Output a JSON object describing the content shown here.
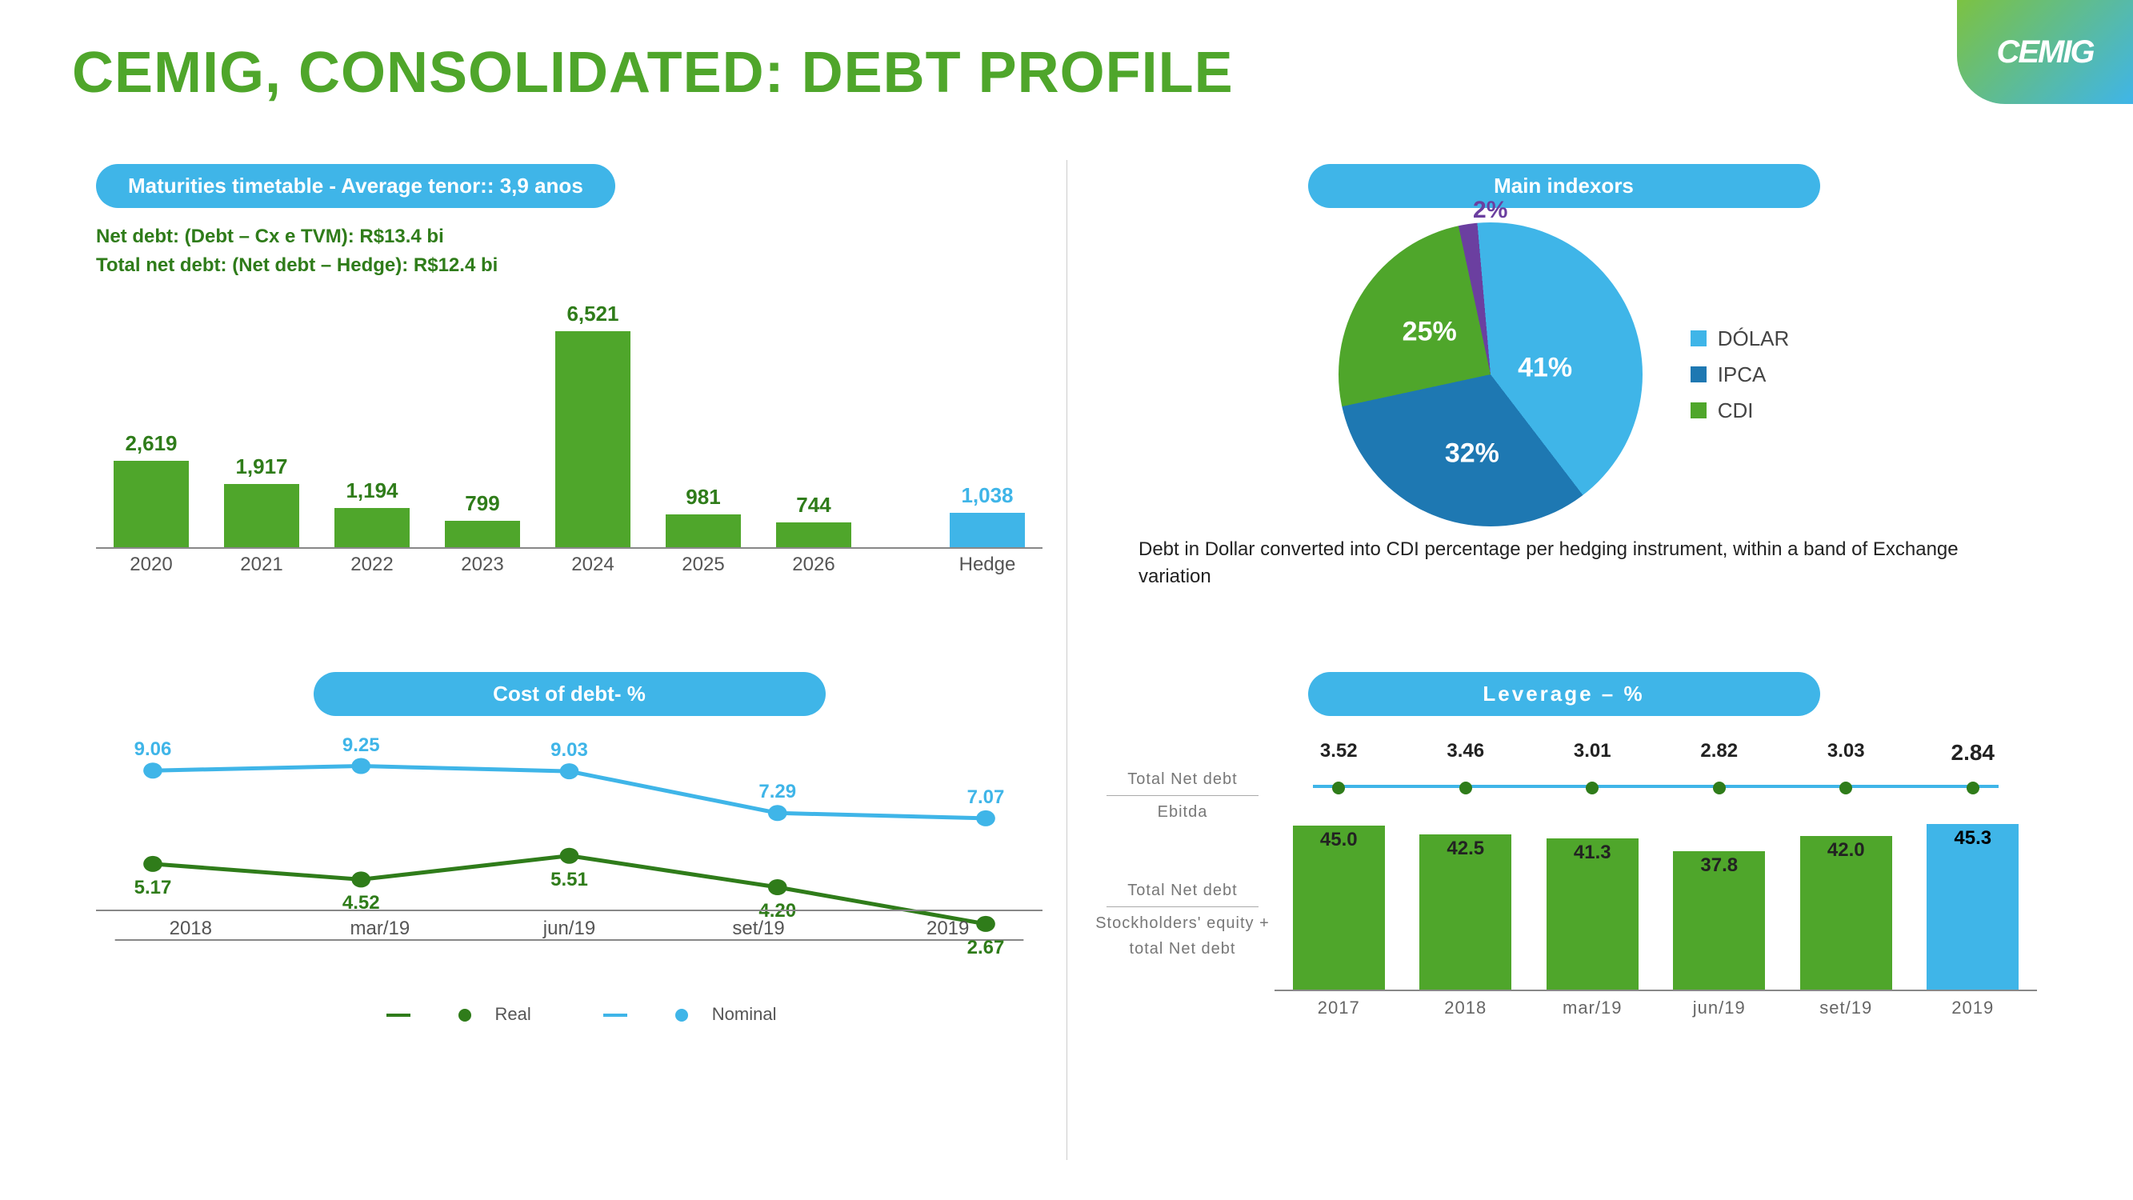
{
  "title": "CEMIG, CONSOLIDATED: DEBT PROFILE",
  "logo": "CEMIG",
  "colors": {
    "green": "#4fa62b",
    "green_dark": "#2f7c1a",
    "blue_light": "#3fb5e8",
    "blue_dark": "#1e78b2",
    "purple": "#6b3fa0",
    "grey": "#888888",
    "background": "#ffffff"
  },
  "quad1": {
    "pill": "Maturities timetable - Average tenor:: 3,9 anos",
    "line1a": "Net debt:",
    "line1b": "(Debt – Cx e TVM):",
    "line1c": "R$13.4 bi",
    "line2a": "Total net debt:",
    "line2b": "(Net debt – Hedge):",
    "line2c": "R$12.4 bi",
    "chart": {
      "type": "bar",
      "ymax": 6521,
      "categories": [
        "2020",
        "2021",
        "2022",
        "2023",
        "2024",
        "2025",
        "2026",
        "",
        "Hedge"
      ],
      "values": [
        2619,
        1917,
        1194,
        799,
        6521,
        981,
        744,
        null,
        1038
      ],
      "colors": [
        "#4fa62b",
        "#4fa62b",
        "#4fa62b",
        "#4fa62b",
        "#4fa62b",
        "#4fa62b",
        "#4fa62b",
        "",
        "#3fb5e8"
      ],
      "label_colors": [
        "#2f7c1a",
        "#2f7c1a",
        "#2f7c1a",
        "#2f7c1a",
        "#2f7c1a",
        "#2f7c1a",
        "#2f7c1a",
        "",
        "#3fb5e8"
      ]
    }
  },
  "quad2": {
    "pill": "Main indexors",
    "pie": {
      "type": "pie",
      "slices": [
        {
          "label": "41%",
          "value": 41,
          "color": "#3fb5e8",
          "lx": 68,
          "ly": 48
        },
        {
          "label": "32%",
          "value": 32,
          "color": "#1e78b2",
          "lx": 44,
          "ly": 76
        },
        {
          "label": "25%",
          "value": 25,
          "color": "#4fa62b",
          "lx": 30,
          "ly": 36
        },
        {
          "label": "2%",
          "value": 2,
          "color": "#6b3fa0",
          "lx": 50,
          "ly": -4,
          "text_color": "#6b3fa0"
        }
      ],
      "legend": [
        {
          "label": "DÓLAR",
          "color": "#3fb5e8"
        },
        {
          "label": "IPCA",
          "color": "#1e78b2"
        },
        {
          "label": "CDI",
          "color": "#4fa62b"
        }
      ]
    },
    "note": "Debt in Dollar converted into CDI percentage per hedging instrument, within a band of Exchange variation"
  },
  "quad3": {
    "pill": "Cost of debt- %",
    "chart": {
      "type": "line",
      "categories": [
        "2018",
        "mar/19",
        "jun/19",
        "set/19",
        "2019"
      ],
      "ymin": 2,
      "ymax": 10,
      "series": [
        {
          "name": "Nominal",
          "color": "#3fb5e8",
          "values": [
            9.06,
            9.25,
            9.03,
            7.29,
            7.07
          ],
          "label_dy": -26
        },
        {
          "name": "Real",
          "color": "#2f7c1a",
          "values": [
            5.17,
            4.52,
            5.51,
            4.2,
            2.67
          ],
          "label_dy": 30
        }
      ],
      "legend": [
        {
          "name": "Real",
          "color": "#2f7c1a"
        },
        {
          "name": "Nominal",
          "color": "#3fb5e8"
        }
      ]
    }
  },
  "quad4": {
    "pill": "Leverage – %",
    "left_labels": {
      "top_num": "Total Net debt",
      "top_den": "Ebitda",
      "bot_num": "Total Net debt",
      "bot_den": "Stockholders' equity + total Net debt"
    },
    "chart": {
      "type": "bar+line",
      "categories": [
        "2017",
        "2018",
        "mar/19",
        "jun/19",
        "set/19",
        "2019"
      ],
      "bar_values": [
        45.0,
        42.5,
        41.3,
        37.8,
        42.0,
        45.3
      ],
      "bar_colors": [
        "#4fa62b",
        "#4fa62b",
        "#4fa62b",
        "#4fa62b",
        "#4fa62b",
        "#3fb5e8"
      ],
      "bar_ymax": 46,
      "line_values": [
        3.52,
        3.46,
        3.01,
        2.82,
        3.03,
        2.84
      ],
      "line_color": "#3fb5e8",
      "marker_color": "#2f7c1a",
      "last_bold": true
    }
  }
}
